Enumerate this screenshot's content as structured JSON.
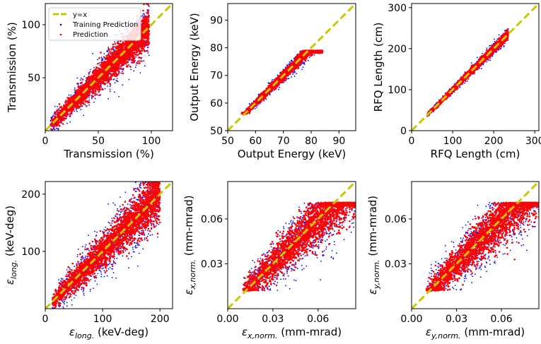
{
  "chart_data": [
    {
      "type": "scatter",
      "xlabel": "Transmission (%)",
      "ylabel": "Transmission (%)",
      "xlim": [
        0,
        120
      ],
      "ylim": [
        0,
        120
      ],
      "xticks": [
        0,
        50,
        100
      ],
      "yticks": [
        50,
        100
      ],
      "xtick_labels": [
        "0",
        "50",
        "100"
      ],
      "ytick_labels": [
        "50",
        "100"
      ],
      "diagonal": "y=x",
      "data_range": [
        5,
        98
      ],
      "spread": 0.12,
      "legend": {
        "position": "top-left",
        "entries": [
          "y=x",
          "Training Prediction",
          "Prediction"
        ]
      },
      "series": [
        {
          "name": "Training Prediction",
          "color": "#0000ff"
        },
        {
          "name": "Prediction",
          "color": "#ff0000"
        }
      ]
    },
    {
      "type": "scatter",
      "xlabel": "Output Energy (keV)",
      "ylabel": "Output Energy (keV)",
      "xlim": [
        50,
        96
      ],
      "ylim": [
        50,
        96
      ],
      "xticks": [
        50,
        60,
        70,
        80,
        90
      ],
      "yticks": [
        50,
        60,
        70,
        80,
        90
      ],
      "xtick_labels": [
        "50",
        "60",
        "70",
        "80",
        "90"
      ],
      "ytick_labels": [
        "50",
        "60",
        "70",
        "80",
        "90"
      ],
      "diagonal": "y=x",
      "data_range": [
        55,
        84
      ],
      "y_range": [
        56,
        79
      ],
      "spread": 0.05,
      "series": [
        {
          "name": "Training Prediction",
          "color": "#0000ff"
        },
        {
          "name": "Prediction",
          "color": "#ff0000"
        }
      ]
    },
    {
      "type": "scatter",
      "xlabel": "RFQ Length (cm)",
      "ylabel": "RFQ Length (cm)",
      "xlim": [
        0,
        310
      ],
      "ylim": [
        0,
        310
      ],
      "xticks": [
        0,
        100,
        200,
        300
      ],
      "yticks": [
        0,
        100,
        200,
        300
      ],
      "xtick_labels": [
        "0",
        "100",
        "200",
        "300"
      ],
      "ytick_labels": [
        "0",
        "100",
        "200",
        "300"
      ],
      "diagonal": "y=x",
      "data_range": [
        38,
        235
      ],
      "spread": 0.035,
      "series": [
        {
          "name": "Training Prediction",
          "color": "#0000ff"
        },
        {
          "name": "Prediction",
          "color": "#ff0000"
        }
      ]
    },
    {
      "type": "scatter",
      "xlabel": "ε_long. (keV-deg)",
      "ylabel": "ε_long. (keV-deg)",
      "xlim": [
        0,
        222
      ],
      "ylim": [
        0,
        222
      ],
      "xticks": [
        0,
        100,
        200
      ],
      "yticks": [
        100,
        200
      ],
      "xtick_labels": [
        "0",
        "100",
        "200"
      ],
      "ytick_labels": [
        "100",
        "200"
      ],
      "diagonal": "y=x",
      "data_range": [
        12,
        200
      ],
      "spread": 0.15,
      "series": [
        {
          "name": "Training Prediction",
          "color": "#0000ff"
        },
        {
          "name": "Prediction",
          "color": "#ff0000"
        }
      ]
    },
    {
      "type": "scatter",
      "xlabel": "ε_x,norm. (mm-mrad)",
      "ylabel": "ε_x,norm. (mm-mrad)",
      "xlim": [
        0.0,
        0.085
      ],
      "ylim": [
        0.0,
        0.085
      ],
      "xticks": [
        0.0,
        0.03,
        0.06
      ],
      "yticks": [
        0.03,
        0.06
      ],
      "xtick_labels": [
        "0.00",
        "0.03",
        "0.06"
      ],
      "ytick_labels": [
        "0.03",
        "0.06"
      ],
      "diagonal": "y=x",
      "data_range": [
        0.01,
        0.085
      ],
      "y_range": [
        0.012,
        0.071
      ],
      "spread": 0.18,
      "series": [
        {
          "name": "Training Prediction",
          "color": "#0000ff"
        },
        {
          "name": "Prediction",
          "color": "#ff0000"
        }
      ]
    },
    {
      "type": "scatter",
      "xlabel": "ε_y,norm. (mm-mrad)",
      "ylabel": "ε_y,norm. (mm-mrad)",
      "xlim": [
        0.0,
        0.085
      ],
      "ylim": [
        0.0,
        0.085
      ],
      "xticks": [
        0.0,
        0.03,
        0.06
      ],
      "yticks": [
        0.03,
        0.06
      ],
      "xtick_labels": [
        "0.00",
        "0.03",
        "0.06"
      ],
      "ytick_labels": [
        "0.03",
        "0.06"
      ],
      "diagonal": "y=x",
      "data_range": [
        0.01,
        0.085
      ],
      "y_range": [
        0.012,
        0.071
      ],
      "spread": 0.18,
      "series": [
        {
          "name": "Training Prediction",
          "color": "#0000ff"
        },
        {
          "name": "Prediction",
          "color": "#ff0000"
        }
      ]
    }
  ],
  "style": {
    "diagonal_color": "#c8c800",
    "axis_color": "#000000"
  }
}
